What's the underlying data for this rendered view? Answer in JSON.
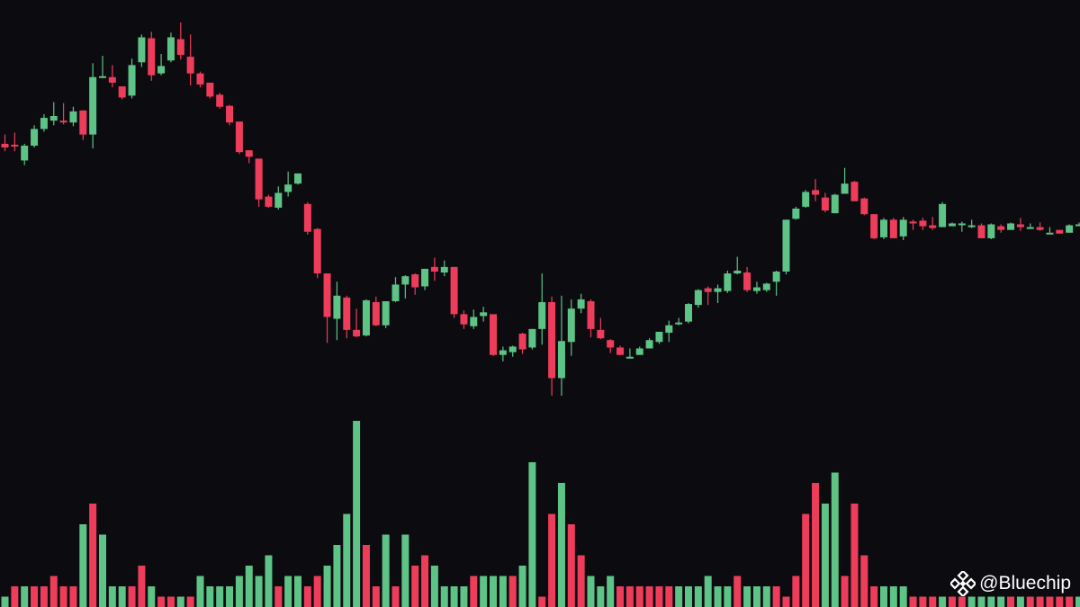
{
  "watermark": {
    "text": "@Bluechip",
    "icon": "binance-diamond-icon"
  },
  "colors": {
    "background": "#0c0b10",
    "up": "#5dc386",
    "down": "#ee3d5b",
    "watermark": "#ffffff"
  },
  "chart_data": {
    "type": "candlestick",
    "grid": false,
    "axes_visible": false,
    "price_candles": [
      [
        300,
        296,
        292,
        310
      ],
      [
        299,
        298,
        292,
        312
      ],
      [
        282,
        298,
        277,
        300
      ],
      [
        298,
        316,
        296,
        320
      ],
      [
        316,
        328,
        313,
        332
      ],
      [
        325,
        330,
        320,
        345
      ],
      [
        325,
        324,
        321,
        344
      ],
      [
        323,
        335,
        319,
        340
      ],
      [
        336,
        310,
        304,
        336
      ],
      [
        310,
        372,
        295,
        387
      ],
      [
        372,
        373,
        371,
        395
      ],
      [
        372,
        366,
        361,
        385
      ],
      [
        362,
        350,
        348,
        360
      ],
      [
        352,
        385,
        349,
        392
      ],
      [
        388,
        415,
        383,
        418
      ],
      [
        414,
        374,
        368,
        421
      ],
      [
        376,
        384,
        374,
        397
      ],
      [
        390,
        415,
        388,
        420
      ],
      [
        413,
        396,
        391,
        431
      ],
      [
        394,
        376,
        363,
        418
      ],
      [
        376,
        364,
        361,
        378
      ],
      [
        366,
        351,
        349,
        366
      ],
      [
        353,
        340,
        338,
        355
      ],
      [
        341,
        323,
        320,
        342
      ],
      [
        324,
        291,
        289,
        324
      ],
      [
        293,
        286,
        279,
        293
      ],
      [
        284,
        240,
        232,
        284
      ],
      [
        243,
        232,
        231,
        245
      ],
      [
        231,
        247,
        229,
        254
      ],
      [
        248,
        256,
        243,
        270
      ],
      [
        257,
        268,
        256,
        268
      ],
      [
        235,
        205,
        202,
        237
      ],
      [
        208,
        160,
        155,
        209
      ],
      [
        160,
        113,
        85,
        160
      ],
      [
        111,
        136,
        88,
        151
      ],
      [
        134,
        99,
        90,
        136
      ],
      [
        99,
        92,
        91,
        122
      ],
      [
        93,
        131,
        92,
        132
      ],
      [
        129,
        104,
        103,
        135
      ],
      [
        104,
        130,
        101,
        130
      ],
      [
        130,
        148,
        129,
        156
      ],
      [
        148,
        157,
        133,
        158
      ],
      [
        159,
        145,
        137,
        160
      ],
      [
        146,
        165,
        142,
        165
      ],
      [
        167,
        162,
        152,
        177
      ],
      [
        161,
        167,
        157,
        174
      ],
      [
        167,
        116,
        112,
        167
      ],
      [
        116,
        105,
        100,
        120
      ],
      [
        103,
        113,
        100,
        121
      ],
      [
        114,
        118,
        108,
        124
      ],
      [
        116,
        72,
        71,
        115
      ],
      [
        72,
        77,
        65,
        81
      ],
      [
        75,
        81,
        70,
        82
      ],
      [
        95,
        78,
        73,
        96
      ],
      [
        80,
        100,
        78,
        100
      ],
      [
        100,
        129,
        83,
        160
      ],
      [
        129,
        47,
        28,
        135
      ],
      [
        47,
        87,
        28,
        136
      ],
      [
        86,
        122,
        71,
        132
      ],
      [
        122,
        132,
        117,
        138
      ],
      [
        130,
        100,
        91,
        132
      ],
      [
        99,
        90,
        89,
        112
      ],
      [
        88,
        80,
        74,
        89
      ],
      [
        80,
        72,
        72,
        82
      ],
      [
        69,
        70,
        69,
        79
      ],
      [
        72,
        79,
        72,
        81
      ],
      [
        79,
        88,
        79,
        90
      ],
      [
        86,
        97,
        84,
        97
      ],
      [
        96,
        104,
        86,
        109
      ],
      [
        106,
        107,
        104,
        112
      ],
      [
        108,
        127,
        106,
        128
      ],
      [
        126,
        142,
        123,
        143
      ],
      [
        144,
        140,
        126,
        146
      ],
      [
        140,
        144,
        128,
        148
      ],
      [
        141,
        160,
        139,
        163
      ],
      [
        160,
        163,
        159,
        178
      ],
      [
        161,
        142,
        140,
        167
      ],
      [
        141,
        145,
        138,
        151
      ],
      [
        142,
        149,
        140,
        150
      ],
      [
        151,
        162,
        136,
        163
      ],
      [
        162,
        218,
        159,
        218
      ],
      [
        219,
        230,
        218,
        232
      ],
      [
        232,
        248,
        231,
        250
      ],
      [
        250,
        245,
        238,
        262
      ],
      [
        242,
        228,
        226,
        247
      ],
      [
        225,
        245,
        225,
        246
      ],
      [
        246,
        257,
        246,
        274
      ],
      [
        259,
        238,
        238,
        260
      ],
      [
        241,
        224,
        223,
        242
      ],
      [
        224,
        198,
        197,
        224
      ],
      [
        199,
        218,
        197,
        220
      ],
      [
        218,
        198,
        198,
        220
      ],
      [
        200,
        218,
        196,
        221
      ],
      [
        216,
        214,
        207,
        218
      ],
      [
        217,
        211,
        207,
        220
      ],
      [
        212,
        209,
        207,
        221
      ],
      [
        210,
        235,
        210,
        237
      ],
      [
        211,
        214,
        211,
        215
      ],
      [
        214,
        214,
        205,
        216
      ],
      [
        210,
        212,
        209,
        218
      ],
      [
        212,
        198,
        198,
        214
      ],
      [
        198,
        213,
        197,
        214
      ],
      [
        211,
        207,
        204,
        213
      ],
      [
        207,
        214,
        207,
        215
      ],
      [
        213,
        210,
        206,
        220
      ],
      [
        208,
        210,
        209,
        214
      ],
      [
        210,
        207,
        206,
        215
      ],
      [
        204,
        204,
        204,
        210
      ],
      [
        207,
        203,
        203,
        207
      ],
      [
        204,
        212,
        204,
        213
      ],
      [
        212,
        213,
        211,
        215
      ],
      [
        210,
        213,
        208,
        215
      ],
      [
        212,
        203,
        203,
        214
      ],
      [
        205,
        213,
        204,
        214
      ],
      [
        206,
        205,
        202,
        208
      ]
    ],
    "volume": [
      [
        1,
        true
      ],
      [
        2,
        false
      ],
      [
        2,
        true
      ],
      [
        2,
        false
      ],
      [
        2,
        false
      ],
      [
        3,
        false
      ],
      [
        2,
        false
      ],
      [
        2,
        false
      ],
      [
        8,
        true
      ],
      [
        10,
        false
      ],
      [
        7,
        true
      ],
      [
        2,
        true
      ],
      [
        2,
        true
      ],
      [
        2,
        false
      ],
      [
        4,
        false
      ],
      [
        2,
        true
      ],
      [
        1,
        false
      ],
      [
        1,
        false
      ],
      [
        1,
        true
      ],
      [
        1,
        false
      ],
      [
        3,
        true
      ],
      [
        2,
        true
      ],
      [
        2,
        true
      ],
      [
        2,
        true
      ],
      [
        3,
        true
      ],
      [
        4,
        true
      ],
      [
        3,
        true
      ],
      [
        5,
        true
      ],
      [
        2,
        false
      ],
      [
        3,
        true
      ],
      [
        3,
        true
      ],
      [
        2,
        false
      ],
      [
        3,
        false
      ],
      [
        4,
        true
      ],
      [
        6,
        true
      ],
      [
        9,
        true
      ],
      [
        18,
        true
      ],
      [
        6,
        false
      ],
      [
        2,
        false
      ],
      [
        7,
        true
      ],
      [
        2,
        false
      ],
      [
        7,
        true
      ],
      [
        4,
        false
      ],
      [
        5,
        false
      ],
      [
        4,
        true
      ],
      [
        2,
        true
      ],
      [
        2,
        true
      ],
      [
        2,
        true
      ],
      [
        3,
        false
      ],
      [
        3,
        true
      ],
      [
        3,
        true
      ],
      [
        3,
        true
      ],
      [
        3,
        false
      ],
      [
        4,
        true
      ],
      [
        14,
        true
      ],
      [
        1,
        false
      ],
      [
        9,
        false
      ],
      [
        12,
        true
      ],
      [
        8,
        false
      ],
      [
        5,
        false
      ],
      [
        3,
        true
      ],
      [
        2,
        true
      ],
      [
        3,
        true
      ],
      [
        2,
        false
      ],
      [
        2,
        false
      ],
      [
        2,
        false
      ],
      [
        2,
        false
      ],
      [
        2,
        false
      ],
      [
        2,
        false
      ],
      [
        2,
        true
      ],
      [
        2,
        true
      ],
      [
        2,
        true
      ],
      [
        3,
        true
      ],
      [
        2,
        true
      ],
      [
        2,
        true
      ],
      [
        3,
        false
      ],
      [
        2,
        true
      ],
      [
        2,
        true
      ],
      [
        2,
        true
      ],
      [
        2,
        false
      ],
      [
        1,
        false
      ],
      [
        3,
        false
      ],
      [
        9,
        false
      ],
      [
        12,
        false
      ],
      [
        10,
        true
      ],
      [
        13,
        true
      ],
      [
        3,
        false
      ],
      [
        10,
        false
      ],
      [
        5,
        false
      ],
      [
        2,
        false
      ],
      [
        2,
        true
      ],
      [
        2,
        true
      ],
      [
        2,
        true
      ],
      [
        1,
        false
      ],
      [
        1,
        false
      ],
      [
        1,
        false
      ],
      [
        1,
        true
      ],
      [
        1,
        false
      ],
      [
        1,
        false
      ],
      [
        1,
        true
      ],
      [
        1,
        true
      ],
      [
        1,
        true
      ],
      [
        1,
        true
      ],
      [
        1,
        false
      ],
      [
        1,
        true
      ],
      [
        1,
        false
      ],
      [
        1,
        false
      ],
      [
        1,
        false
      ],
      [
        1,
        false
      ],
      [
        1,
        false
      ],
      [
        1,
        true
      ],
      [
        1,
        false
      ],
      [
        1,
        false
      ],
      [
        1,
        false
      ],
      [
        1,
        false
      ]
    ]
  }
}
